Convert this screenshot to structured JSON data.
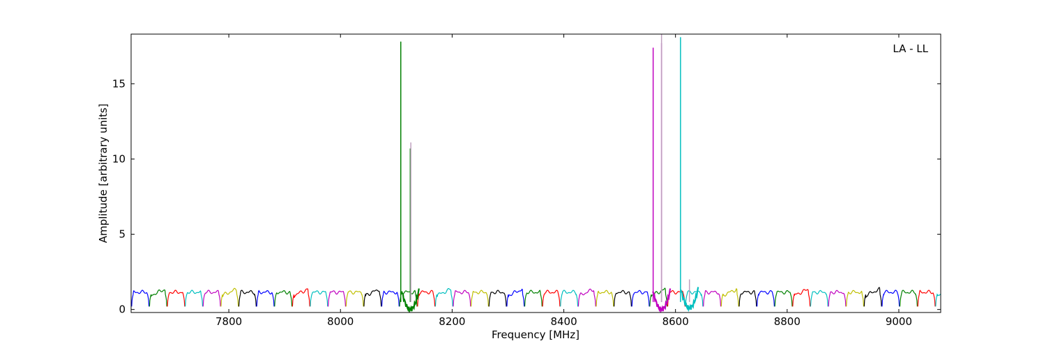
{
  "chart_data": {
    "type": "line",
    "title": "",
    "annotation": "LA - LL",
    "xlabel": "Frequency [MHz]",
    "ylabel": "Amplitude [arbitrary units]",
    "xlim": [
      7625,
      9075
    ],
    "ylim": [
      -0.2,
      18.3
    ],
    "xticks": [
      7800,
      8000,
      8200,
      8400,
      8600,
      8800,
      9000
    ],
    "yticks": [
      0,
      5,
      10,
      15
    ],
    "grid": false,
    "legend": "none",
    "channel_width_mhz": 32,
    "band_start_mhz": 7626,
    "color_cycle": [
      "#0000ff",
      "#008000",
      "#ff0000",
      "#00bfbf",
      "#bf00bf",
      "#bfbf00",
      "#000000"
    ],
    "baseline_profile": {
      "note": "each channel: flat ripple ~1.1-1.3, dips to ~0.2 at channel edges",
      "edge_value": 0.2,
      "mid_value": 1.15
    },
    "spikes": [
      {
        "x": 8108,
        "y": 17.8,
        "color": "#008000"
      },
      {
        "x": 8125,
        "y": 10.7,
        "color": "#008000"
      },
      {
        "x": 8126,
        "y": 11.1,
        "color": "#bfa0bf"
      },
      {
        "x": 8560,
        "y": 17.4,
        "color": "#bf00bf"
      },
      {
        "x": 8575,
        "y": 17.7,
        "color": "#bf00bf"
      },
      {
        "x": 8575,
        "y": 18.3,
        "color": "#bfa0bf"
      },
      {
        "x": 8609,
        "y": 18.1,
        "color": "#00bfbf"
      },
      {
        "x": 8625,
        "y": 2.0,
        "color": "#bfa0bf"
      }
    ],
    "notches": [
      {
        "x_center": 8125,
        "depth_to": 0.0,
        "color": "#008000"
      },
      {
        "x_center": 8575,
        "depth_to": 0.0,
        "color": "#bf00bf"
      },
      {
        "x_center": 8625,
        "depth_to": 0.1,
        "color": "#00bfbf"
      }
    ]
  }
}
